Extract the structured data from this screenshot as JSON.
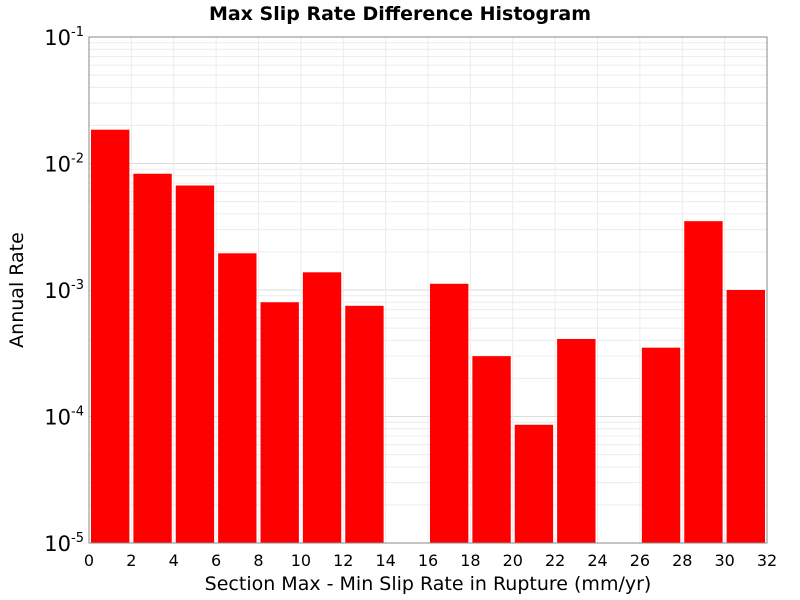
{
  "chart_data": {
    "type": "bar",
    "title": "Max Slip Rate Difference Histogram",
    "xlabel": "Section Max - Min Slip Rate in Rupture (mm/yr)",
    "ylabel": "Annual Rate",
    "y_scale": "log",
    "ylim": [
      1e-05,
      0.1
    ],
    "xlim": [
      0,
      32
    ],
    "bin_width": 2,
    "bar_color": "#ff0000",
    "grid": true,
    "xticks": [
      "0",
      "2",
      "4",
      "6",
      "8",
      "10",
      "12",
      "14",
      "16",
      "18",
      "20",
      "22",
      "24",
      "26",
      "28",
      "30",
      "32"
    ],
    "yticks": [
      {
        "value": 0.1,
        "base": "10",
        "exp": "-1"
      },
      {
        "value": 0.01,
        "base": "10",
        "exp": "-2"
      },
      {
        "value": 0.001,
        "base": "10",
        "exp": "-3"
      },
      {
        "value": 0.0001,
        "base": "10",
        "exp": "-4"
      },
      {
        "value": 1e-05,
        "base": "10",
        "exp": "-5"
      }
    ],
    "bins": [
      {
        "x": 1,
        "value": 0.0185
      },
      {
        "x": 3,
        "value": 0.0083
      },
      {
        "x": 5,
        "value": 0.0067
      },
      {
        "x": 7,
        "value": 0.00195
      },
      {
        "x": 9,
        "value": 0.0008
      },
      {
        "x": 11,
        "value": 0.00138
      },
      {
        "x": 13,
        "value": 0.00075
      },
      {
        "x": 15,
        "value": null
      },
      {
        "x": 17,
        "value": 0.00112
      },
      {
        "x": 19,
        "value": 0.0003
      },
      {
        "x": 21,
        "value": 8.6e-05
      },
      {
        "x": 23,
        "value": 0.00041
      },
      {
        "x": 25,
        "value": null
      },
      {
        "x": 27,
        "value": 0.00035
      },
      {
        "x": 29,
        "value": 0.0035
      },
      {
        "x": 31,
        "value": 0.001
      }
    ]
  }
}
